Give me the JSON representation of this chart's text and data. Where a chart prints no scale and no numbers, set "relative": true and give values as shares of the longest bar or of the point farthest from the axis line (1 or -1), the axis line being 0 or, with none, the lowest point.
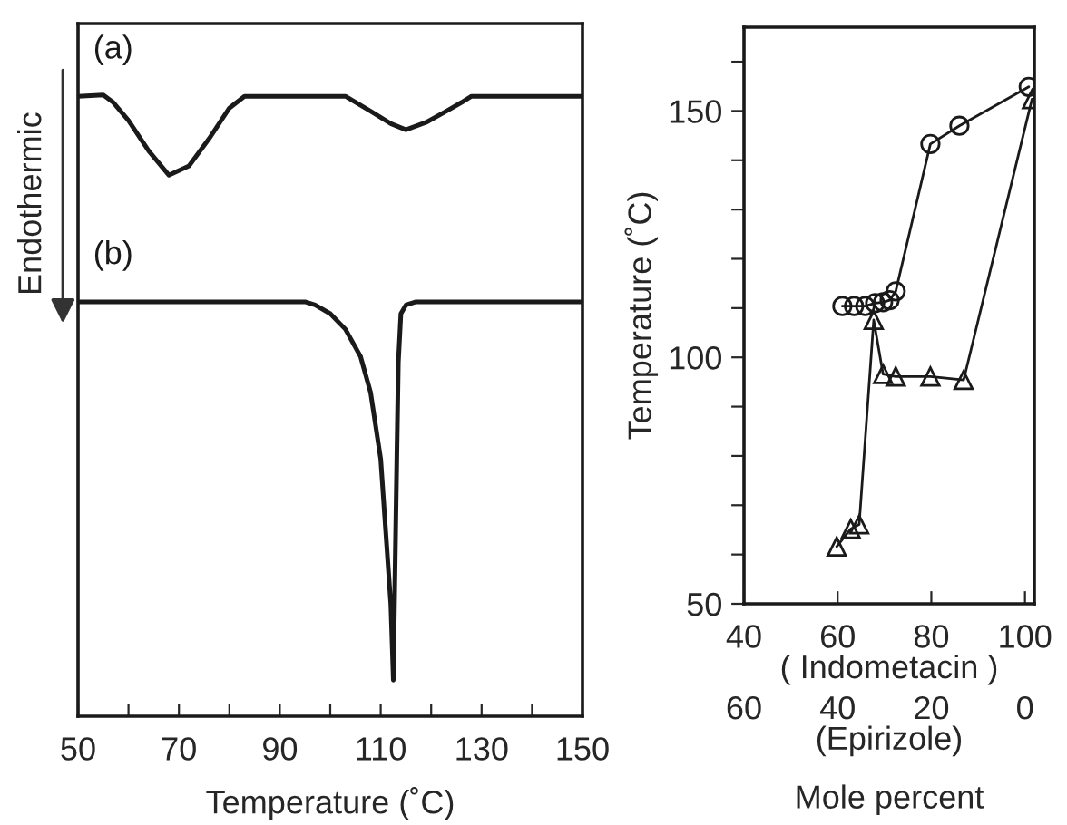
{
  "chart_data": [
    {
      "type": "line",
      "relative": true,
      "xlabel": "Temperature (˚C)",
      "ylabel": "Endothermic",
      "xlim": [
        50,
        150
      ],
      "xticks": [
        50,
        {
          "value": 60,
          "label": null
        },
        70,
        {
          "value": 80,
          "label": null
        },
        90,
        {
          "value": 100,
          "label": null
        },
        110,
        {
          "value": 120,
          "label": null
        },
        130,
        {
          "value": 140,
          "label": null
        },
        150
      ],
      "marker": "none",
      "line_style": "solid",
      "grid": false,
      "legend": false,
      "series": [
        {
          "name": "(a)",
          "color": "#1a1a1a",
          "x": [
            50,
            55,
            57,
            60,
            64,
            68,
            72,
            76,
            80,
            83,
            103,
            108,
            112,
            115,
            119,
            123,
            126,
            128,
            150
          ],
          "values": [
            0.998,
            1.0,
            0.988,
            0.959,
            0.91,
            0.871,
            0.886,
            0.93,
            0.979,
            0.998,
            0.998,
            0.974,
            0.954,
            0.944,
            0.956,
            0.974,
            0.988,
            0.998,
            0.998
          ]
        },
        {
          "name": "(b)",
          "color": "#1a1a1a",
          "x": [
            50,
            95,
            97,
            100,
            103,
            106,
            108,
            110,
            111,
            112,
            112.5,
            113.5,
            114,
            115,
            117,
            150
          ],
          "values": [
            0.667,
            0.667,
            0.662,
            0.648,
            0.623,
            0.579,
            0.521,
            0.414,
            0.297,
            0.18,
            0.058,
            0.57,
            0.648,
            0.662,
            0.667,
            0.667
          ]
        }
      ]
    },
    {
      "type": "line",
      "ylabel": "Temperature (˚C)",
      "xlabel": "( Indometacin )",
      "x2label": "(Epirizole)",
      "annotations": [
        "Mole percent"
      ],
      "xlim": [
        40,
        102
      ],
      "xticks": [
        40,
        60,
        80,
        100
      ],
      "x2lim": [
        60,
        -2
      ],
      "x2ticks": [
        60,
        40,
        20,
        0
      ],
      "ylim": [
        50,
        167
      ],
      "yticks": [
        50,
        {
          "value": 60,
          "label": null
        },
        {
          "value": 70,
          "label": null
        },
        {
          "value": 80,
          "label": null
        },
        {
          "value": 90,
          "label": null
        },
        100,
        {
          "value": 110,
          "label": null
        },
        {
          "value": 120,
          "label": null
        },
        {
          "value": 130,
          "label": null
        },
        {
          "value": 140,
          "label": null
        },
        150,
        {
          "value": 160,
          "label": null
        }
      ],
      "grid": false,
      "legend": false,
      "line_style": "solid",
      "series": [
        {
          "color": "#1a1a1a",
          "marker": "circle",
          "x": [
            61.0,
            63.5,
            65.9,
            68.0,
            69.7,
            71.1,
            72.4,
            79.8,
            86.0,
            100.8
          ],
          "values": [
            110.4,
            110.4,
            110.4,
            111.0,
            111.2,
            111.6,
            113.4,
            143.3,
            147.0,
            154.9
          ]
        },
        {
          "color": "#1a1a1a",
          "marker": "triangle",
          "x": [
            59.8,
            62.8,
            64.6,
            67.7,
            69.7,
            72.4,
            79.8,
            86.9,
            101.5
          ],
          "values": [
            61.6,
            65.2,
            66.1,
            107.6,
            96.6,
            96.1,
            96.1,
            95.4,
            152.4
          ]
        }
      ]
    }
  ]
}
